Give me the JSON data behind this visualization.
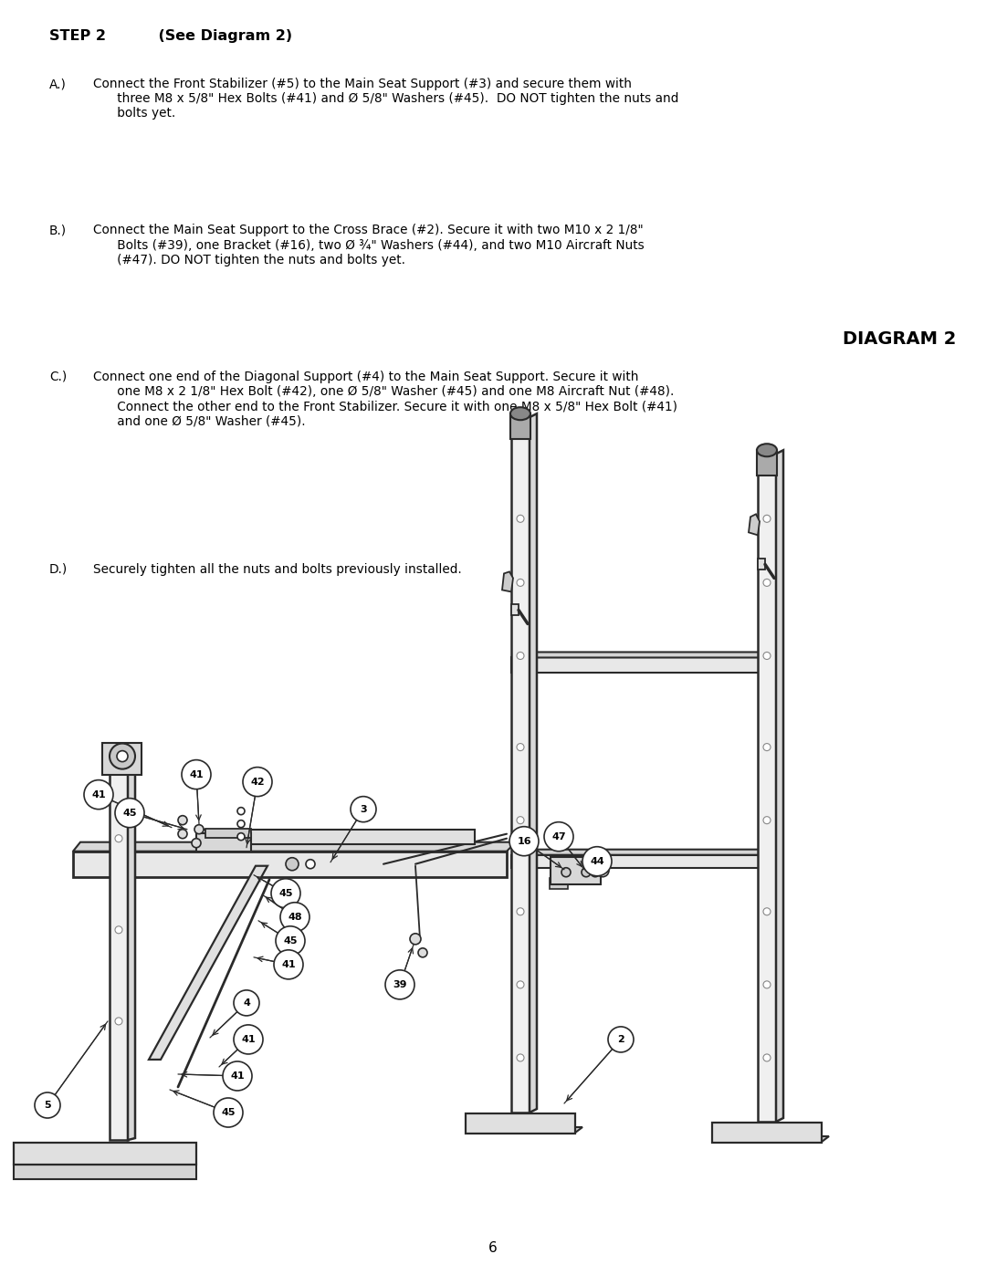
{
  "page_number": "6",
  "title_bold": "STEP 2",
  "title_rest": "    (See Diagram 2)",
  "diagram_label": "DIAGRAM 2",
  "step_A": "Connect the Front Stabilizer (#5) to the Main Seat Support (#3) and secure them with\n      three M8 x 5/8\" Hex Bolts (#41) and Ø 5/8\" Washers (#45).  DO NOT tighten the nuts and\n      bolts yet.",
  "step_B": "Connect the Main Seat Support to the Cross Brace (#2). Secure it with two M10 x 2 1/8\"\n      Bolts (#39), one Bracket (#16), two Ø ¾\" Washers (#44), and two M10 Aircraft Nuts\n      (#47). DO NOT tighten the nuts and bolts yet.",
  "step_C": "Connect one end of the Diagonal Support (#4) to the Main Seat Support. Secure it with\n      one M8 x 2 1/8\" Hex Bolt (#42), one Ø 5/8\" Washer (#45) and one M8 Aircraft Nut (#48).\n      Connect the other end to the Front Stabilizer. Secure it with one M8 x 5/8\" Hex Bolt (#41)\n      and one Ø 5/8\" Washer (#45).",
  "step_D": "Securely tighten all the nuts and bolts previously installed.",
  "bg_color": "#ffffff",
  "text_color": "#000000",
  "line_color": "#2a2a2a",
  "font_size_title": 11.5,
  "font_size_body": 9.8,
  "font_size_diag_label": 14,
  "font_size_page": 11,
  "font_size_partnum": 8
}
